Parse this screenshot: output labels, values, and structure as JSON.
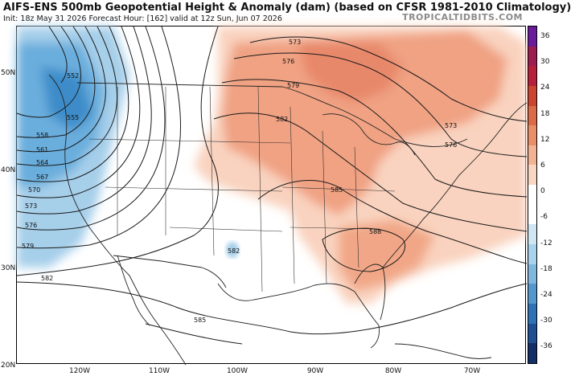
{
  "header": {
    "title": "AIFS-ENS 500mb Geopotential Height & Anomaly (dam) (based on CFSR 1981-2010 Climatology)",
    "subtitle": "Init: 18z May 31 2026   Forecast Hour: [162]   valid at 12z Sun, Jun 07 2026",
    "credit": "TROPICALTIDBITS.COM"
  },
  "axes": {
    "lat_labels": [
      "50N",
      "40N",
      "30N",
      "20N"
    ],
    "lon_labels": [
      "120W",
      "110W",
      "100W",
      "90W",
      "80W",
      "70W"
    ]
  },
  "contour_labels": [
    "552",
    "555",
    "558",
    "561",
    "564",
    "567",
    "570",
    "573",
    "576",
    "579",
    "582",
    "573",
    "576",
    "579",
    "582",
    "585",
    "588",
    "573",
    "576",
    "582",
    "585"
  ],
  "colorbar": {
    "labels": [
      "36",
      "30",
      "24",
      "18",
      "12",
      "6",
      "0",
      "-6",
      "-12",
      "-18",
      "-24",
      "-30",
      "-36"
    ],
    "colors": [
      "#6a1b9a",
      "#9c1d52",
      "#b5203a",
      "#c9452f",
      "#db6a47",
      "#e88e68",
      "#f2b393",
      "#f9d6c2",
      "#ffffff",
      "#ffffff",
      "#cfe6f3",
      "#a9d2ec",
      "#7fb7df",
      "#5497cc",
      "#2f73b4",
      "#1d4f92",
      "#142e66"
    ]
  },
  "colors": {
    "positive_anomaly": "#f3a88a",
    "negative_anomaly": "#6aaedd",
    "contour": "#1a1a1a",
    "border": "#222222"
  }
}
